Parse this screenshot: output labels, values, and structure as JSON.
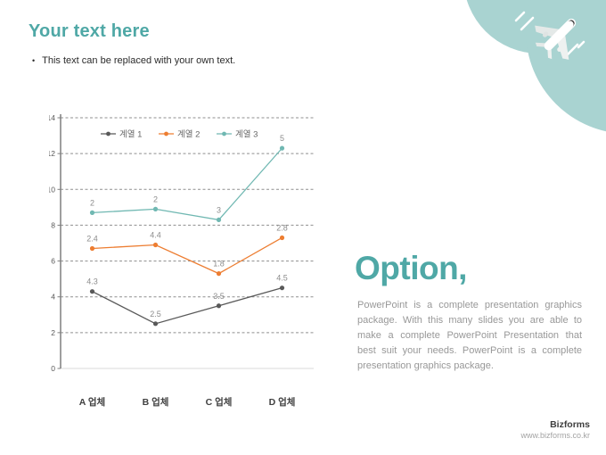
{
  "slide": {
    "title": "Your text here",
    "bullet_text": "This text can be replaced with your own text.",
    "bullet_glyph": "•",
    "option": {
      "heading": "Option,",
      "body": "PowerPoint is a complete presentation graphics package. With this many slides you are able to make a complete PowerPoint Presentation that best suit your needs. PowerPoint is a complete presentation graphics package."
    },
    "footer": {
      "brand": "Bizforms",
      "url": "www.bizforms.co.kr"
    },
    "colors": {
      "accent_teal": "#4fa8a6",
      "decor_teal": "#a9d3d1",
      "series1_gray": "#595959",
      "series2_orange": "#ed7d31",
      "series3_teal": "#70b8b2",
      "gridline": "#8f8f8f",
      "axis": "#7f7f7f",
      "data_label": "#8c8c8c",
      "tick_label": "#595959"
    }
  },
  "chart_data": {
    "type": "line",
    "stacked": true,
    "categories": [
      "A 업체",
      "B 업체",
      "C 업체",
      "D 업체"
    ],
    "series": [
      {
        "name": "계열 1",
        "values": [
          4.3,
          2.5,
          3.5,
          4.5
        ],
        "color": "#595959"
      },
      {
        "name": "계열 2",
        "values": [
          2.4,
          4.4,
          1.8,
          2.8
        ],
        "color": "#ed7d31"
      },
      {
        "name": "계열 3",
        "values": [
          2,
          2,
          3,
          5
        ],
        "color": "#70b8b2"
      }
    ],
    "title": "",
    "xlabel": "",
    "ylabel": "",
    "ylim": [
      0,
      14
    ],
    "ytick_step": 2,
    "yticks": [
      0,
      2,
      4,
      6,
      8,
      10,
      12,
      14
    ],
    "grid": "horizontal-dashed",
    "legend_position": "top-inside",
    "data_labels": true
  }
}
